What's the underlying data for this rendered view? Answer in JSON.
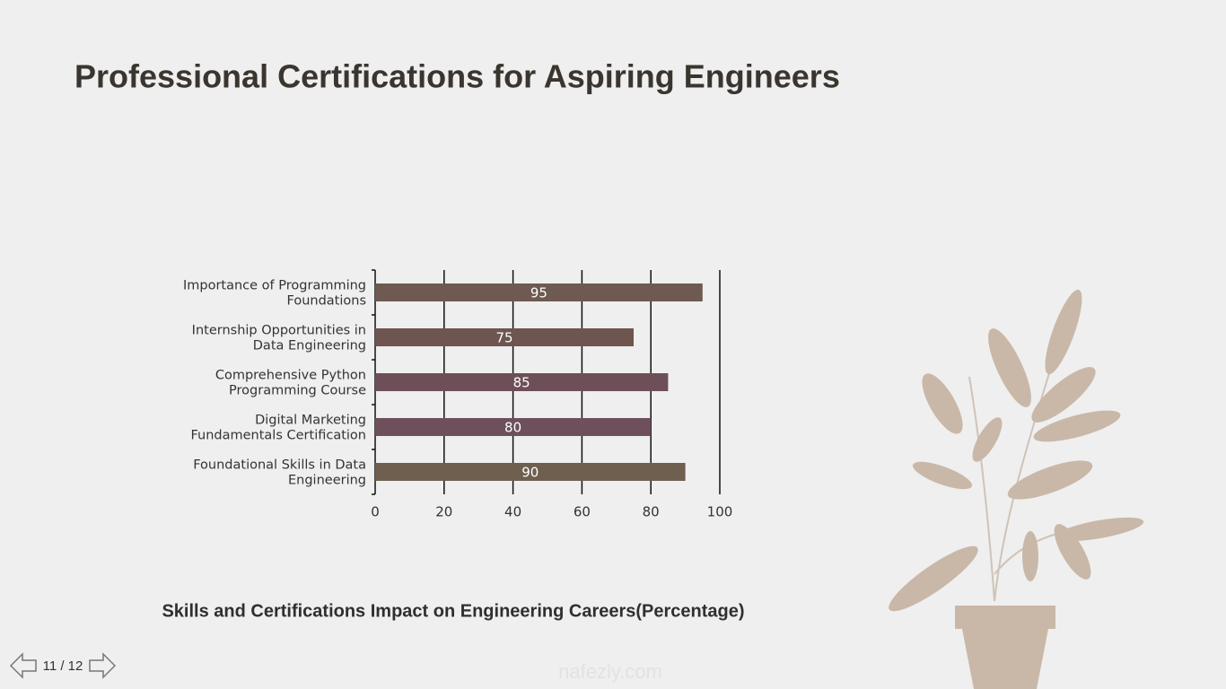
{
  "slide": {
    "title": "Professional Certifications for Aspiring Engineers",
    "page_indicator": "11 / 12",
    "watermark": "nafezly.com"
  },
  "chart_data": {
    "type": "hbar",
    "title": "Skills and Certifications Impact on Engineering Careers(Percentage)",
    "categories": [
      "Importance of Programming Foundations",
      "Internship Opportunities in Data Engineering",
      "Comprehensive Python Programming Course",
      "Digital Marketing Fundamentals Certification",
      "Foundational Skills in Data Engineering"
    ],
    "values": [
      95,
      75,
      85,
      80,
      90
    ],
    "colors": [
      "#6e5a50",
      "#6e5550",
      "#6e4f57",
      "#6e4f5c",
      "#6f5f4f"
    ],
    "xlim": [
      0,
      100
    ],
    "xticks": [
      0,
      20,
      40,
      60,
      80,
      100
    ],
    "grid": true
  }
}
